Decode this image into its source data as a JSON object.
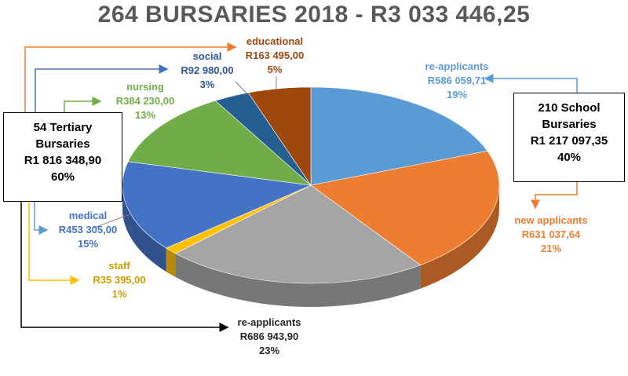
{
  "title": "264 BURSARIES 2018 - R3 033 446,25",
  "groups": {
    "tertiary": {
      "line1": "54 Tertiary",
      "line2": "Bursaries",
      "amount": "R1 816 348,90",
      "pct": "60%"
    },
    "school": {
      "line1": "210 School",
      "line2": "Bursaries",
      "amount": "R1 217 097,35",
      "pct": "40%"
    }
  },
  "labels": {
    "re_applicants_school": {
      "name": "re-applicants",
      "amount": "R586 059,71",
      "pct": "19%"
    },
    "new_applicants": {
      "name": "new applicants",
      "amount": "R631 037,64",
      "pct": "21%"
    },
    "re_applicants_tertiary": {
      "name": "re-applicants",
      "amount": "R686 943,90",
      "pct": "23%"
    },
    "staff": {
      "name": "staff",
      "amount": "R35 395,00",
      "pct": "1%"
    },
    "medical": {
      "name": "medical",
      "amount": "R453 305,00",
      "pct": "15%"
    },
    "nursing": {
      "name": "nursing",
      "amount": "R384 230,00",
      "pct": "13%"
    },
    "social": {
      "name": "social",
      "amount": "R92 980,00",
      "pct": "3%"
    },
    "educational": {
      "name": "educational",
      "amount": "R163 495,00",
      "pct": "5%"
    }
  },
  "chart_data": {
    "type": "pie",
    "title": "264 BURSARIES 2018 - R3 033 446,25",
    "style": "3d-pie",
    "slices": [
      {
        "name": "re-applicants",
        "group": "School",
        "value": 586059.71,
        "percent": 19,
        "color": "#5B9BD5"
      },
      {
        "name": "new applicants",
        "group": "School",
        "value": 631037.64,
        "percent": 21,
        "color": "#ED7D31"
      },
      {
        "name": "re-applicants",
        "group": "Tertiary",
        "value": 686943.9,
        "percent": 23,
        "color": "#A5A5A5"
      },
      {
        "name": "staff",
        "group": "Tertiary",
        "value": 35395.0,
        "percent": 1,
        "color": "#FFC000"
      },
      {
        "name": "medical",
        "group": "Tertiary",
        "value": 453305.0,
        "percent": 15,
        "color": "#4472C4"
      },
      {
        "name": "nursing",
        "group": "Tertiary",
        "value": 384230.0,
        "percent": 13,
        "color": "#70AD47"
      },
      {
        "name": "social",
        "group": "Tertiary",
        "value": 92980.0,
        "percent": 3,
        "color": "#255E91"
      },
      {
        "name": "educational",
        "group": "Tertiary",
        "value": 163495.0,
        "percent": 5,
        "color": "#9E480E"
      }
    ]
  }
}
